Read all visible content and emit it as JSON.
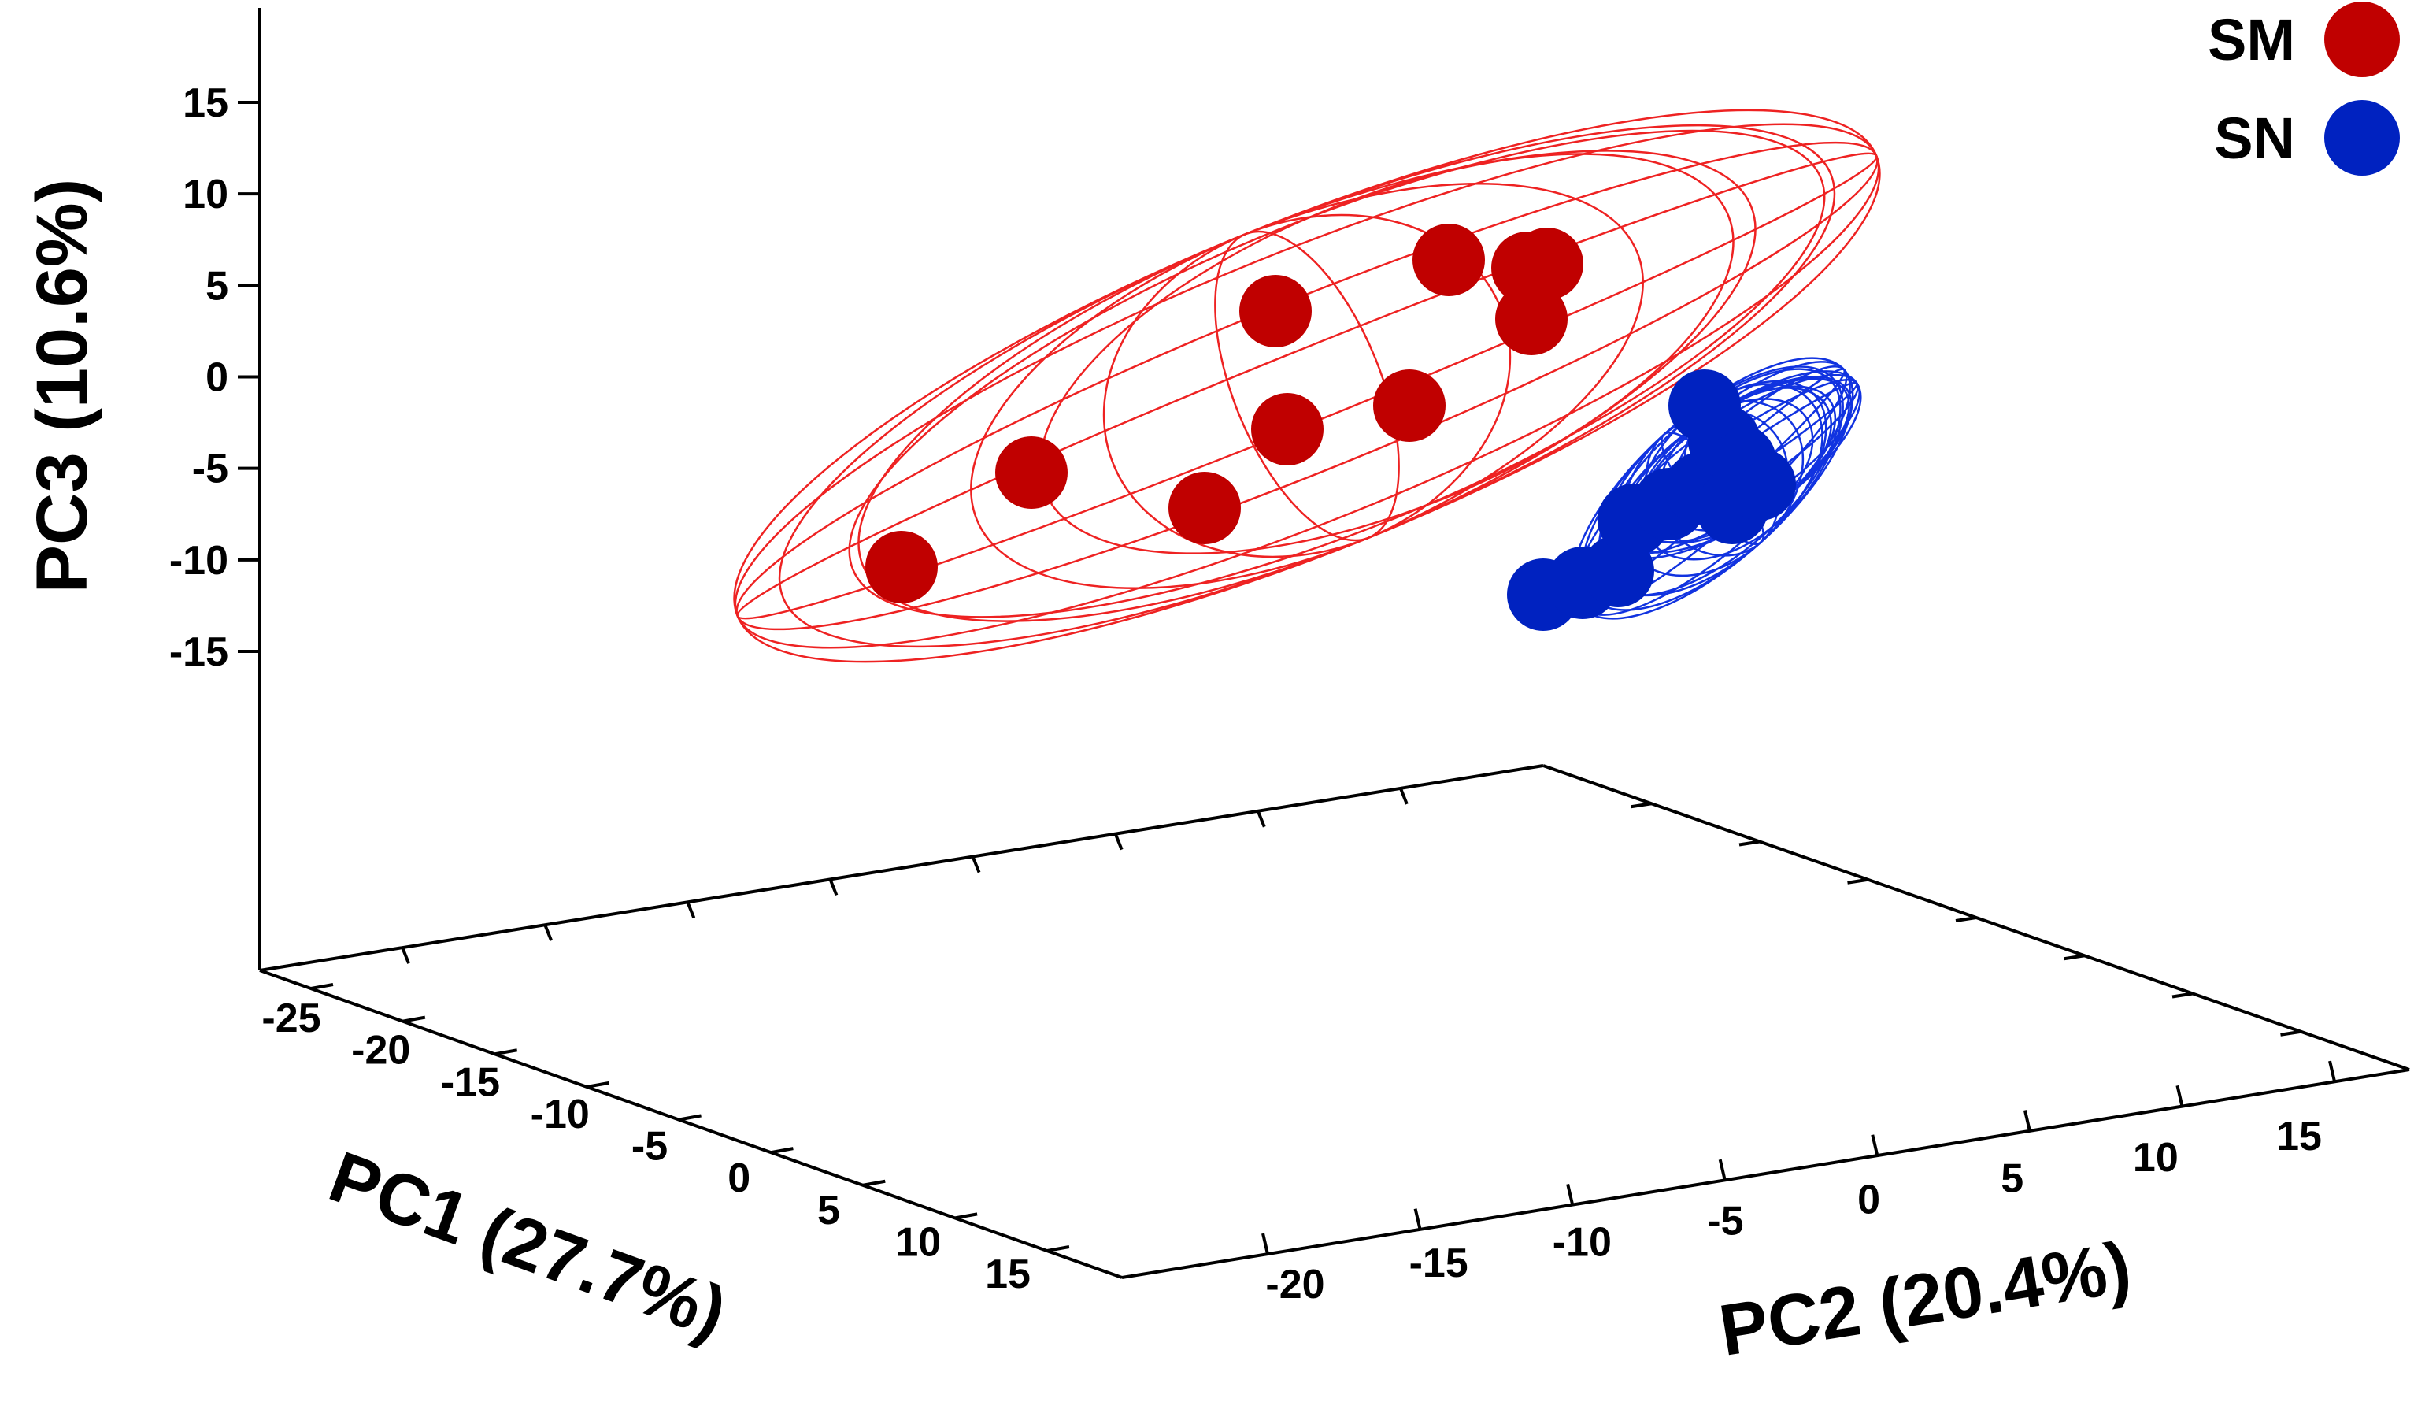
{
  "chart_data": {
    "type": "scatter",
    "projection": "3d",
    "title": "",
    "axes": {
      "x": {
        "label": "PC1 (27.7%)",
        "ticks": [
          -25,
          -20,
          -15,
          -10,
          -5,
          0,
          5,
          10,
          15
        ],
        "range": [
          -25,
          15
        ]
      },
      "y": {
        "label": "PC2 (20.4%)",
        "ticks": [
          -20,
          -15,
          -10,
          -5,
          0,
          5,
          10,
          15
        ],
        "range": [
          -20,
          15
        ]
      },
      "z": {
        "label": "PC3 (10.6%)",
        "ticks": [
          -15,
          -10,
          -5,
          0,
          5,
          10,
          15
        ],
        "range": [
          -15,
          15
        ]
      }
    },
    "legend": {
      "position": "top-right"
    },
    "grid": false,
    "series": [
      {
        "name": "SM",
        "color": "#c00000",
        "ellipse_color": "#ee2222",
        "points_screen": [
          [
            1145,
            720
          ],
          [
            1310,
            600
          ],
          [
            1530,
            645
          ],
          [
            1635,
            545
          ],
          [
            1620,
            395
          ],
          [
            1790,
            515
          ],
          [
            1840,
            330
          ],
          [
            1940,
            340
          ],
          [
            1945,
            405
          ],
          [
            1965,
            335
          ]
        ]
      },
      {
        "name": "SN",
        "color": "#0022c0",
        "ellipse_color": "#1133e0",
        "points_screen": [
          [
            1960,
            755
          ],
          [
            2010,
            740
          ],
          [
            2055,
            725
          ],
          [
            2075,
            660
          ],
          [
            2120,
            640
          ],
          [
            2160,
            620
          ],
          [
            2200,
            645
          ],
          [
            2235,
            615
          ],
          [
            2210,
            585
          ],
          [
            2190,
            560
          ],
          [
            2165,
            515
          ]
        ]
      }
    ]
  }
}
